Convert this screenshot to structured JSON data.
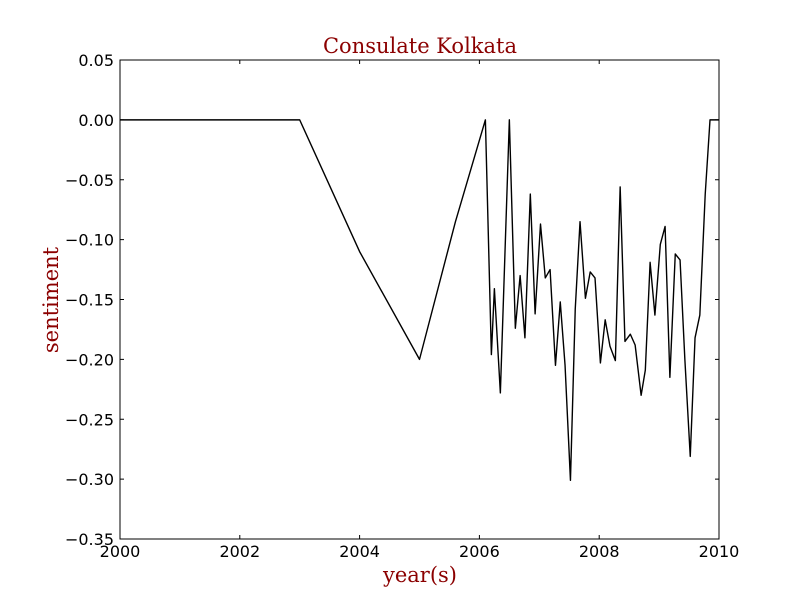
{
  "chart_data": {
    "type": "line",
    "title": "Consulate Kolkata",
    "xlabel": "year(s)",
    "ylabel": "sentiment",
    "xlim": [
      2000,
      2010
    ],
    "ylim": [
      -0.35,
      0.05
    ],
    "x_ticks": [
      2000,
      2002,
      2004,
      2006,
      2008,
      2010
    ],
    "y_ticks": [
      0.05,
      0.0,
      -0.05,
      -0.1,
      -0.15,
      -0.2,
      -0.25,
      -0.3,
      -0.35
    ],
    "x_tick_labels": [
      "2000",
      "2002",
      "2004",
      "2006",
      "2008",
      "2010"
    ],
    "y_tick_labels": [
      "0.05",
      "0.00",
      "−0.05",
      "−0.10",
      "−0.15",
      "−0.20",
      "−0.25",
      "−0.30",
      "−0.35"
    ],
    "grid": false,
    "line_color": "#000000",
    "series": [
      {
        "x": [
          2000.0,
          2003.0,
          2004.0,
          2005.0,
          2005.6,
          2006.1,
          2006.2,
          2006.25,
          2006.35,
          2006.5,
          2006.6,
          2006.68,
          2006.76,
          2006.85,
          2006.93,
          2007.02,
          2007.1,
          2007.18,
          2007.27,
          2007.35,
          2007.43,
          2007.52,
          2007.6,
          2007.68,
          2007.77,
          2007.85,
          2007.93,
          2008.02,
          2008.1,
          2008.18,
          2008.27,
          2008.35,
          2008.43,
          2008.52,
          2008.6,
          2008.7,
          2008.77,
          2008.85,
          2008.93,
          2009.02,
          2009.1,
          2009.18,
          2009.27,
          2009.35,
          2009.43,
          2009.52,
          2009.6,
          2009.68,
          2009.77,
          2009.85,
          2010.0
        ],
        "y": [
          0.0,
          0.0,
          -0.11,
          -0.2,
          -0.085,
          0.0,
          -0.196,
          -0.141,
          -0.228,
          0.0,
          -0.174,
          -0.13,
          -0.182,
          -0.062,
          -0.162,
          -0.087,
          -0.132,
          -0.125,
          -0.205,
          -0.152,
          -0.205,
          -0.301,
          -0.158,
          -0.085,
          -0.149,
          -0.127,
          -0.132,
          -0.203,
          -0.167,
          -0.189,
          -0.201,
          -0.056,
          -0.185,
          -0.179,
          -0.188,
          -0.23,
          -0.209,
          -0.119,
          -0.163,
          -0.104,
          -0.089,
          -0.215,
          -0.112,
          -0.117,
          -0.2,
          -0.281,
          -0.182,
          -0.163,
          -0.062,
          0.0,
          0.0
        ]
      }
    ]
  }
}
